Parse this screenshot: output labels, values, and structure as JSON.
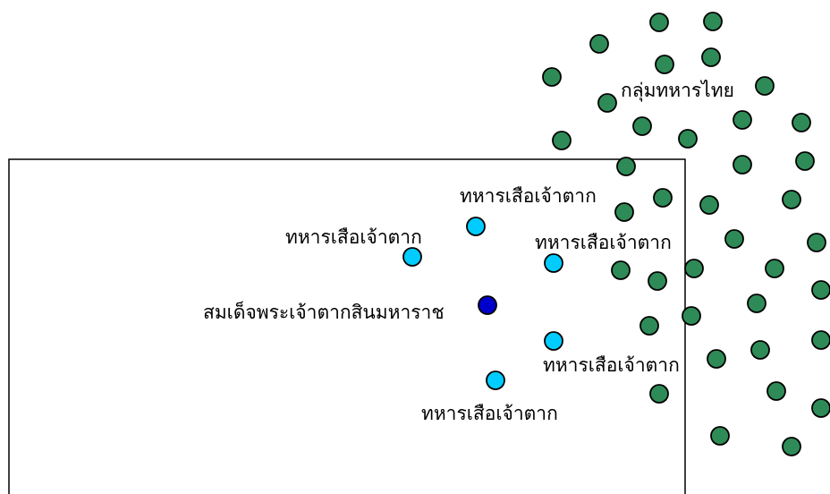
{
  "colors": {
    "thai_army": "#2e8b57",
    "tiger_soldier": "#00ccff",
    "king": "#0000cc",
    "outline": "#000000",
    "background": "#ffffff"
  },
  "labels": {
    "thai_army": "กลุ่มทหารไทย",
    "king": "สมเด็จพระเจ้าตากสินมหาราช",
    "soldier_1": "ทหารเสือเจ้าตาก",
    "soldier_2": "ทหารเสือเจ้าตาก",
    "soldier_3": "ทหารเสือเจ้าตาก",
    "soldier_4": "ทหารเสือเจ้าตาก",
    "soldier_5": "ทหารเสือเจ้าตาก"
  }
}
